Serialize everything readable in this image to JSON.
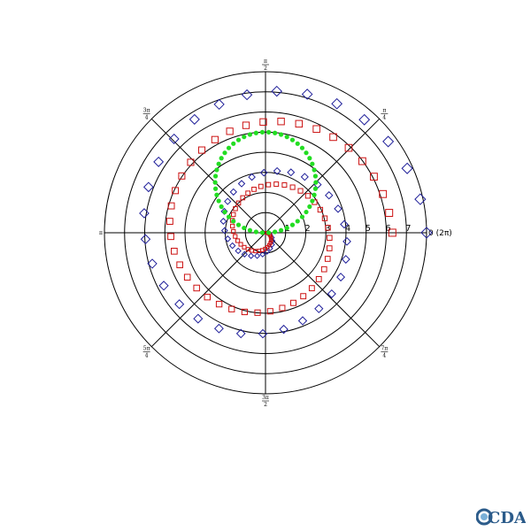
{
  "chart_data": {
    "type": "scatter",
    "projection": "polar",
    "title": "",
    "r_range": [
      0,
      8
    ],
    "radial_ticks": [
      "1",
      "2",
      "3",
      "4",
      "5",
      "6",
      "7"
    ],
    "zero_angle_label": "0 (2π)",
    "angle_labels": [
      {
        "num": "π",
        "den": "4"
      },
      {
        "num": "π",
        "den": "2"
      },
      {
        "num": "3π",
        "den": "4"
      },
      {
        "num": "π",
        "den": ""
      },
      {
        "num": "5π",
        "den": "4"
      },
      {
        "num": "3π",
        "den": "2"
      },
      {
        "num": "7π",
        "den": "4"
      }
    ],
    "series": [
      {
        "marker": "diamond",
        "color": "#1f1f9a",
        "description_points": "theta from 0 to 4pi",
        "r_start": 0,
        "r_end": 8,
        "theta_start": 0,
        "theta_end": 12.566,
        "count": 60
      },
      {
        "marker": "square",
        "color": "#cc1111",
        "r_start": 0,
        "r_end": 6.3,
        "theta_start": 0,
        "theta_end": 12.566,
        "count": 80
      },
      {
        "marker": "dot",
        "color": "#22dd22",
        "circle_center_r": 2.5,
        "circle_center_theta": 1.5708,
        "circle_radius": 2.5,
        "count": 50
      }
    ],
    "grid": true
  },
  "logo": {
    "text": "CDAT"
  }
}
